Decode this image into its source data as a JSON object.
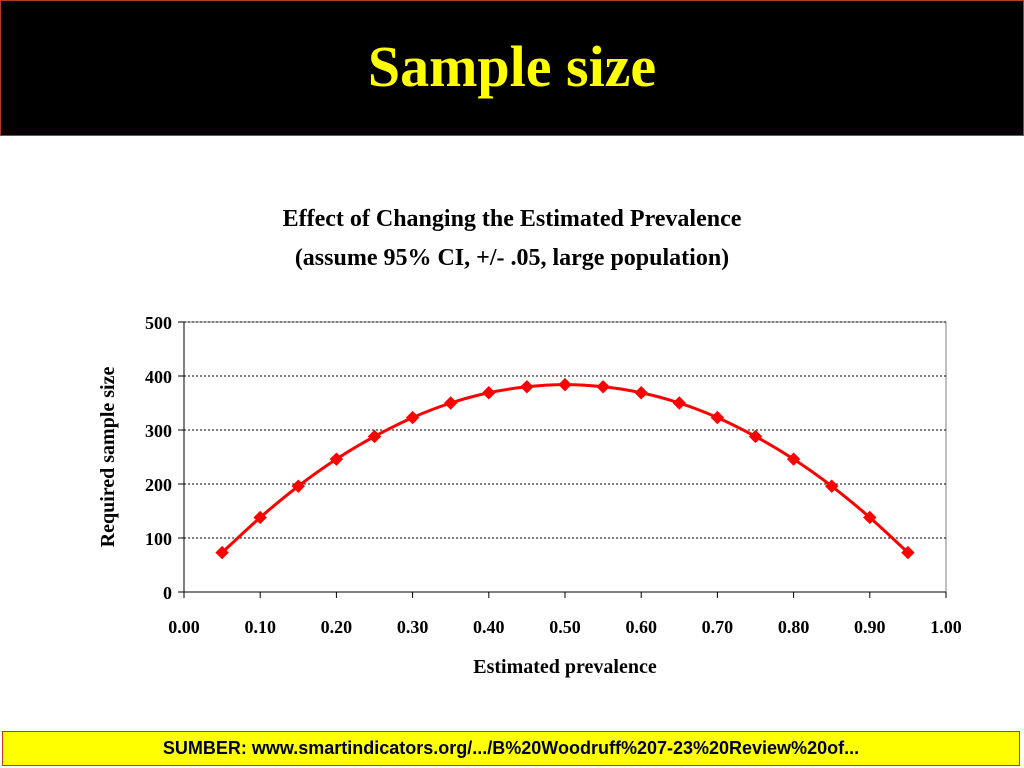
{
  "slide": {
    "title": "Sample size",
    "source_note": "SUMBER: www.smartindicators.org/.../B%20Woodruff%207-23%20Review%20of..."
  },
  "colors": {
    "banner_bg": "#000000",
    "banner_text": "#ffff00",
    "series": "#ff0000",
    "footer_bg": "#ffff00"
  },
  "chart_data": {
    "type": "line",
    "title_line1": "Effect of Changing the Estimated Prevalence",
    "title_line2": "(assume 95%  CI, +/- .05, large population)",
    "xlabel": "Estimated prevalence",
    "ylabel": "Required sample size",
    "xlim": [
      0,
      1
    ],
    "ylim": [
      0,
      500
    ],
    "x_ticks": [
      "0.00",
      "0.10",
      "0.20",
      "0.30",
      "0.40",
      "0.50",
      "0.60",
      "0.70",
      "0.80",
      "0.90",
      "1.00"
    ],
    "y_ticks": [
      "0",
      "100",
      "200",
      "300",
      "400",
      "500"
    ],
    "grid": "horizontal dotted",
    "legend": "none",
    "marker": "diamond",
    "x": [
      0.05,
      0.1,
      0.15,
      0.2,
      0.25,
      0.3,
      0.35,
      0.4,
      0.45,
      0.5,
      0.55,
      0.6,
      0.65,
      0.7,
      0.75,
      0.8,
      0.85,
      0.9,
      0.95
    ],
    "values": [
      73,
      138,
      196,
      246,
      288,
      323,
      350,
      369,
      380,
      384,
      380,
      369,
      350,
      323,
      288,
      246,
      196,
      138,
      73
    ]
  }
}
